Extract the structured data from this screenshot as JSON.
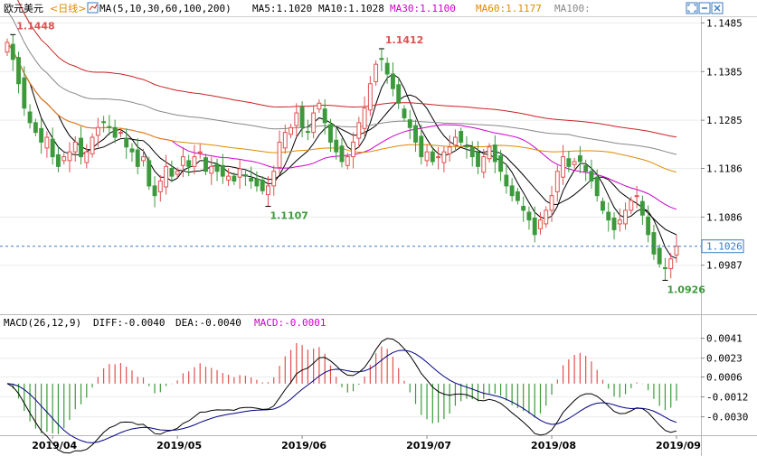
{
  "header": {
    "symbol": "欧元美元",
    "period": "<日线>",
    "ma_icon": "ma-toggle-icon",
    "ma_params": "MA(5,10,30,60,100,200)",
    "ma_values": [
      {
        "label": "MA5:1.1020",
        "color": "#000000"
      },
      {
        "label": "MA10:1.1028",
        "color": "#000000"
      },
      {
        "label": "MA30:1.1100",
        "color": "#cc00cc"
      },
      {
        "label": "MA60:1.1177",
        "color": "#e08a00"
      },
      {
        "label": "MA100:",
        "color": "#888888"
      }
    ],
    "window_buttons": [
      "expand-icon",
      "minimize-icon",
      "close-icon"
    ]
  },
  "macd_header": {
    "params": "MACD(26,12,9)",
    "diff": "DIFF:-0.0040",
    "dea": "DEA:-0.0040",
    "macd": "MACD:-0.0001"
  },
  "colors": {
    "up": "#e05050",
    "down": "#3c9a3c",
    "ma5": "#000000",
    "ma10": "#000000",
    "ma30": "#cc00cc",
    "ma60": "#e08a00",
    "ma100": "#888888",
    "ma200": "#cc2222",
    "diff": "#000000",
    "dea": "#000080",
    "price_line": "#3a7abf"
  },
  "chart_data": [
    {
      "type": "candlestick",
      "title": "欧元美元 日线",
      "x_months": [
        "2019/04",
        "2019/05",
        "2019/06",
        "2019/07",
        "2019/08",
        "2019/09"
      ],
      "y_ticks": [
        "1.1485",
        "1.1385",
        "1.1285",
        "1.1186",
        "1.1086",
        "1.0987"
      ],
      "ylim": [
        1.089,
        1.1495
      ],
      "current_price": "1.1026",
      "annotations": [
        {
          "label": "1.1448",
          "kind": "high"
        },
        {
          "label": "1.1412",
          "kind": "high"
        },
        {
          "label": "1.1107",
          "kind": "low"
        },
        {
          "label": "1.0926",
          "kind": "low"
        }
      ],
      "closes": [
        1.1445,
        1.141,
        1.136,
        1.131,
        1.128,
        1.126,
        1.124,
        1.125,
        1.121,
        1.119,
        1.121,
        1.122,
        1.124,
        1.121,
        1.122,
        1.125,
        1.127,
        1.128,
        1.127,
        1.125,
        1.126,
        1.123,
        1.122,
        1.119,
        1.121,
        1.115,
        1.113,
        1.116,
        1.119,
        1.117,
        1.118,
        1.121,
        1.119,
        1.121,
        1.122,
        1.118,
        1.119,
        1.118,
        1.117,
        1.117,
        1.116,
        1.1185,
        1.117,
        1.116,
        1.115,
        1.114,
        1.115,
        1.118,
        1.124,
        1.126,
        1.127,
        1.13,
        1.127,
        1.126,
        1.13,
        1.132,
        1.128,
        1.124,
        1.122,
        1.12,
        1.121,
        1.124,
        1.128,
        1.131,
        1.136,
        1.14,
        1.141,
        1.138,
        1.135,
        1.132,
        1.129,
        1.127,
        1.124,
        1.121,
        1.122,
        1.12,
        1.121,
        1.122,
        1.123,
        1.125,
        1.124,
        1.123,
        1.121,
        1.119,
        1.121,
        1.123,
        1.12,
        1.118,
        1.115,
        1.113,
        1.112,
        1.11,
        1.108,
        1.105,
        1.108,
        1.11,
        1.113,
        1.118,
        1.121,
        1.119,
        1.12,
        1.12,
        1.118,
        1.116,
        1.113,
        1.11,
        1.108,
        1.106,
        1.108,
        1.11,
        1.112,
        1.113,
        1.109,
        1.105,
        1.101,
        1.099,
        1.098,
        1.1,
        1.1026
      ],
      "ma_series": [
        "MA5",
        "MA10",
        "MA30",
        "MA60",
        "MA100",
        "MA200"
      ]
    },
    {
      "type": "macd",
      "title": "MACD(26,12,9)",
      "y_ticks": [
        "0.0041",
        "0.0023",
        "0.0006",
        "-0.0012",
        "-0.0030"
      ],
      "ylim": [
        -0.0045,
        0.0048
      ],
      "series": [
        {
          "name": "DIFF",
          "last": -0.004
        },
        {
          "name": "DEA",
          "last": -0.004
        },
        {
          "name": "MACD",
          "last": -0.0001
        }
      ]
    }
  ]
}
